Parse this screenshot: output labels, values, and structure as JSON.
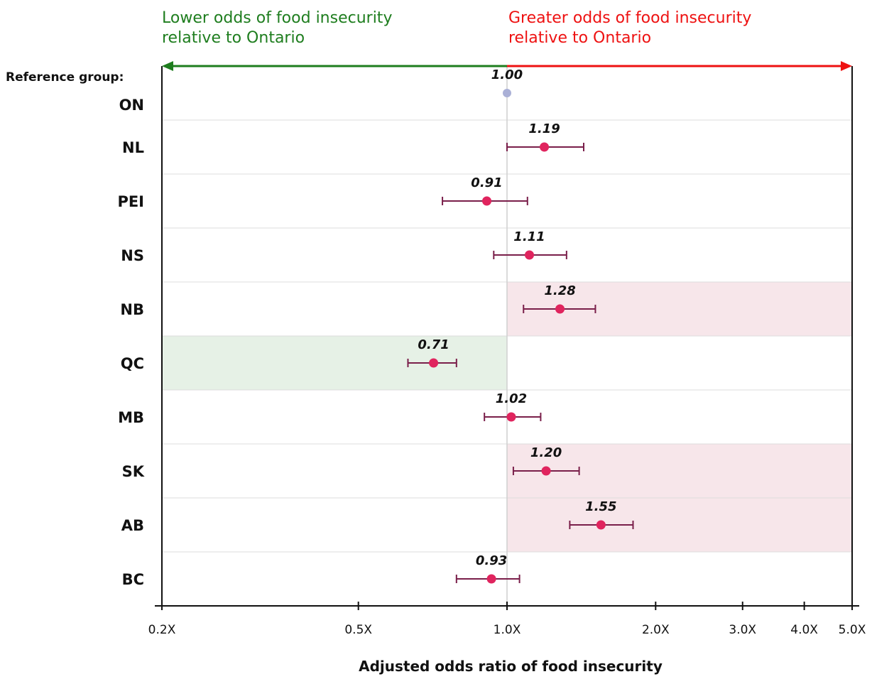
{
  "colors": {
    "lower": "#1e7d1e",
    "greater": "#ee1111",
    "point": "#e0245e",
    "reference_point": "#aab0d6",
    "error_bar": "#7a1f4a",
    "highlight_greater": "#f7e6ea",
    "highlight_lower": "#e6f1e6"
  },
  "header": {
    "lower_text": "Lower odds of food insecurity\nrelative to Ontario",
    "greater_text": "Greater odds of food insecurity\nrelative to Ontario"
  },
  "reference_group_label": "Reference group:",
  "chart_data": {
    "type": "scatter",
    "xscale": "log",
    "xlim": [
      0.2,
      5.0
    ],
    "xlabel": "Adjusted odds ratio of food insecurity",
    "x_ticks": [
      0.2,
      0.5,
      1.0,
      2.0,
      3.0,
      4.0,
      5.0
    ],
    "x_tick_labels": [
      "0.2X",
      "0.5X",
      "1.0X",
      "2.0X",
      "3.0X",
      "4.0X",
      "5.0X"
    ],
    "reference_line": 1.0,
    "categories": [
      "ON",
      "NL",
      "PEI",
      "NS",
      "NB",
      "QC",
      "MB",
      "SK",
      "AB",
      "BC"
    ],
    "values": [
      1.0,
      1.19,
      0.91,
      1.11,
      1.28,
      0.71,
      1.02,
      1.2,
      1.55,
      0.93
    ],
    "value_labels": [
      "1.00",
      "1.19",
      "0.91",
      "1.11",
      "1.28",
      "0.71",
      "1.02",
      "1.20",
      "1.55",
      "0.93"
    ],
    "ci_lower": [
      null,
      1.0,
      0.74,
      0.94,
      1.08,
      0.63,
      0.9,
      1.03,
      1.34,
      0.79
    ],
    "ci_upper": [
      null,
      1.43,
      1.1,
      1.32,
      1.51,
      0.79,
      1.17,
      1.4,
      1.8,
      1.06
    ],
    "highlight": [
      "none",
      "none",
      "none",
      "none",
      "greater",
      "lower",
      "none",
      "greater",
      "greater",
      "none"
    ],
    "grid": true
  }
}
